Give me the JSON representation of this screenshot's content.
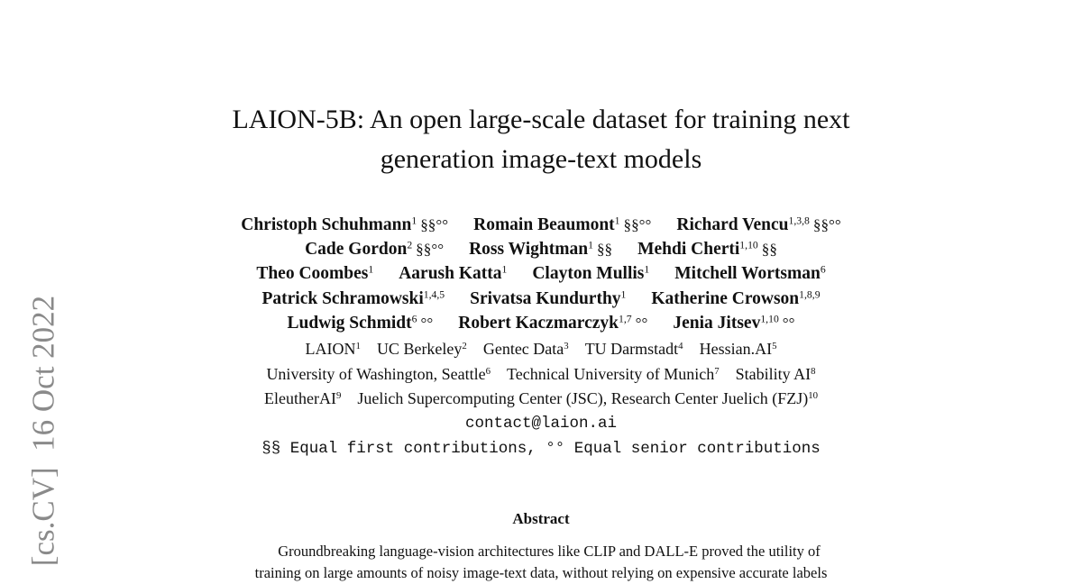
{
  "arxiv_stamp": "[cs.CV]  16 Oct 2022",
  "title": [
    "LAION-5B: An open large-scale dataset for training next",
    "generation image-text models"
  ],
  "author_lines": [
    [
      {
        "name": "Christoph Schuhmann",
        "sup": "1",
        "mark": "§§°°"
      },
      {
        "name": "Romain Beaumont",
        "sup": "1",
        "mark": "§§°°"
      },
      {
        "name": "Richard Vencu",
        "sup": "1,3,8",
        "mark": "§§°°"
      }
    ],
    [
      {
        "name": "Cade Gordon",
        "sup": "2",
        "mark": "§§°°"
      },
      {
        "name": "Ross Wightman",
        "sup": "1",
        "mark": "§§"
      },
      {
        "name": "Mehdi Cherti",
        "sup": "1,10",
        "mark": "§§"
      }
    ],
    [
      {
        "name": "Theo Coombes",
        "sup": "1"
      },
      {
        "name": "Aarush Katta",
        "sup": "1"
      },
      {
        "name": "Clayton Mullis",
        "sup": "1"
      },
      {
        "name": "Mitchell Wortsman",
        "sup": "6"
      }
    ],
    [
      {
        "name": "Patrick Schramowski",
        "sup": "1,4,5"
      },
      {
        "name": "Srivatsa Kundurthy",
        "sup": "1"
      },
      {
        "name": "Katherine Crowson",
        "sup": "1,8,9"
      }
    ],
    [
      {
        "name": "Ludwig Schmidt",
        "sup": "6",
        "mark": "°°"
      },
      {
        "name": "Robert Kaczmarczyk",
        "sup": "1,7",
        "mark": "°°"
      },
      {
        "name": "Jenia Jitsev",
        "sup": "1,10",
        "mark": "°°"
      }
    ]
  ],
  "affiliation_lines": [
    [
      {
        "name": "LAION",
        "sup": "1"
      },
      {
        "name": "UC Berkeley",
        "sup": "2"
      },
      {
        "name": "Gentec Data",
        "sup": "3"
      },
      {
        "name": "TU Darmstadt",
        "sup": "4"
      },
      {
        "name": "Hessian.AI",
        "sup": "5"
      }
    ],
    [
      {
        "name": "University of Washington, Seattle",
        "sup": "6"
      },
      {
        "name": "Technical University of Munich",
        "sup": "7"
      },
      {
        "name": "Stability AI",
        "sup": "8"
      }
    ],
    [
      {
        "name": "EleutherAI",
        "sup": "9"
      },
      {
        "name": "Juelich Supercomputing Center (JSC), Research Center Juelich (FZJ)",
        "sup": "10"
      }
    ]
  ],
  "email": "contact@laion.ai",
  "note": "§§ Equal first contributions, °° Equal senior contributions",
  "abstract": {
    "heading": "Abstract",
    "lines": [
      "Groundbreaking language-vision architectures like CLIP and DALL-E proved the utility of",
      "training on large amounts of noisy image-text data, without relying on expensive accurate labels"
    ]
  }
}
